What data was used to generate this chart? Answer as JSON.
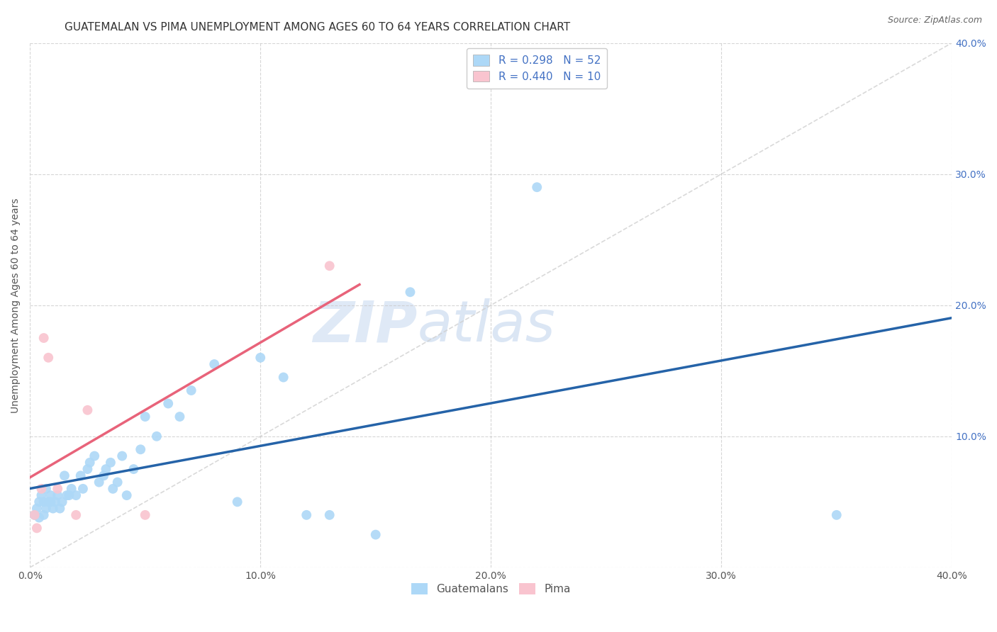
{
  "title": "GUATEMALAN VS PIMA UNEMPLOYMENT AMONG AGES 60 TO 64 YEARS CORRELATION CHART",
  "source": "Source: ZipAtlas.com",
  "ylabel": "Unemployment Among Ages 60 to 64 years",
  "xlim": [
    0.0,
    0.4
  ],
  "ylim": [
    0.0,
    0.4
  ],
  "xtick_vals": [
    0.0,
    0.1,
    0.2,
    0.3,
    0.4
  ],
  "ytick_vals": [
    0.0,
    0.1,
    0.2,
    0.3,
    0.4
  ],
  "guatemalan_x": [
    0.002,
    0.003,
    0.004,
    0.004,
    0.005,
    0.006,
    0.006,
    0.007,
    0.007,
    0.008,
    0.009,
    0.009,
    0.01,
    0.011,
    0.012,
    0.013,
    0.014,
    0.015,
    0.016,
    0.017,
    0.018,
    0.02,
    0.022,
    0.023,
    0.025,
    0.026,
    0.028,
    0.03,
    0.032,
    0.033,
    0.035,
    0.036,
    0.038,
    0.04,
    0.042,
    0.045,
    0.048,
    0.05,
    0.055,
    0.06,
    0.065,
    0.07,
    0.08,
    0.09,
    0.1,
    0.11,
    0.12,
    0.13,
    0.15,
    0.165,
    0.22,
    0.35
  ],
  "guatemalan_y": [
    0.04,
    0.045,
    0.05,
    0.038,
    0.055,
    0.04,
    0.05,
    0.06,
    0.045,
    0.05,
    0.05,
    0.055,
    0.045,
    0.05,
    0.055,
    0.045,
    0.05,
    0.07,
    0.055,
    0.055,
    0.06,
    0.055,
    0.07,
    0.06,
    0.075,
    0.08,
    0.085,
    0.065,
    0.07,
    0.075,
    0.08,
    0.06,
    0.065,
    0.085,
    0.055,
    0.075,
    0.09,
    0.115,
    0.1,
    0.125,
    0.115,
    0.135,
    0.155,
    0.05,
    0.16,
    0.145,
    0.04,
    0.04,
    0.025,
    0.21,
    0.29,
    0.04
  ],
  "pima_x": [
    0.002,
    0.003,
    0.005,
    0.006,
    0.008,
    0.012,
    0.02,
    0.025,
    0.05,
    0.13
  ],
  "pima_y": [
    0.04,
    0.03,
    0.06,
    0.175,
    0.16,
    0.06,
    0.04,
    0.12,
    0.04,
    0.23
  ],
  "guatemalan_color": "#add8f7",
  "pima_color": "#f9c4cf",
  "guatemalan_line_color": "#2563a8",
  "pima_line_color": "#e8637a",
  "diag_line_color": "#d0d0d0",
  "R_guatemalan": 0.298,
  "N_guatemalan": 52,
  "R_pima": 0.44,
  "N_pima": 10,
  "legend_guatemalan": "Guatemalans",
  "legend_pima": "Pima",
  "watermark_zip": "ZIP",
  "watermark_atlas": "atlas",
  "background_color": "#ffffff",
  "title_fontsize": 11,
  "axis_label_fontsize": 10,
  "tick_fontsize": 10,
  "legend_fontsize": 11,
  "marker_size": 100,
  "blue_color": "#4472c4"
}
